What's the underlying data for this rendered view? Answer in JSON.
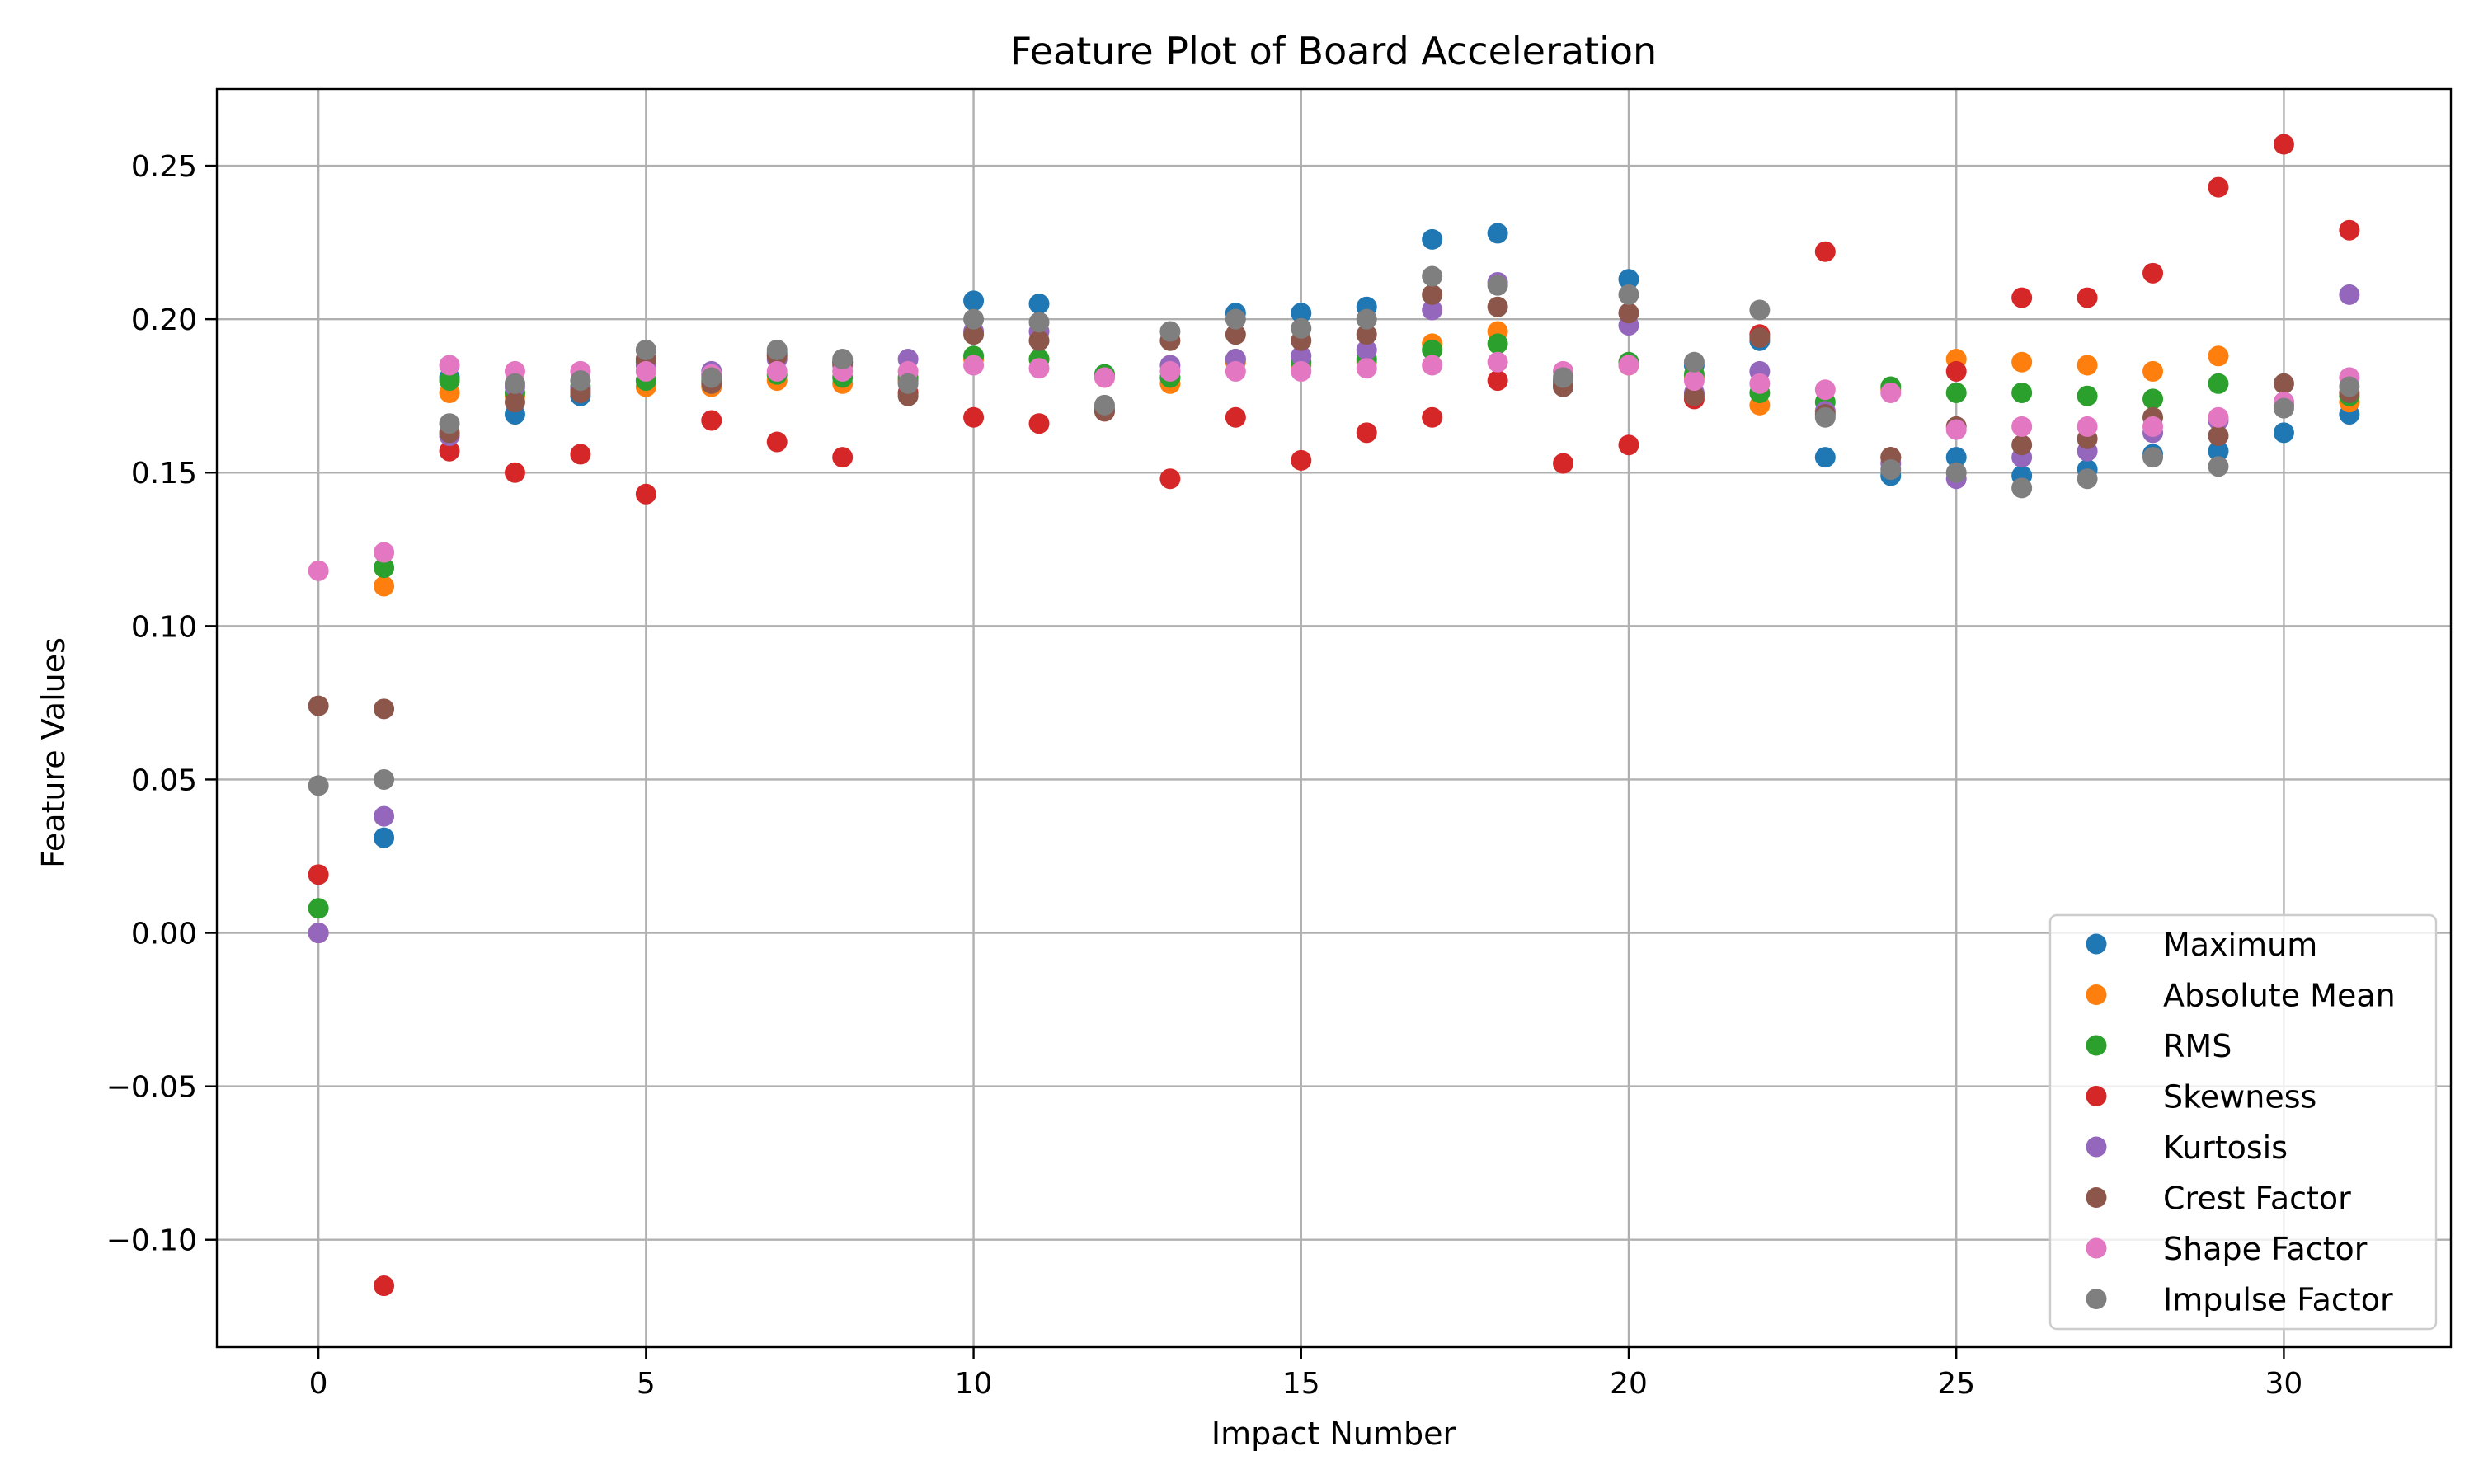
{
  "chart_data": {
    "type": "scatter",
    "title": "Feature Plot of Board Acceleration",
    "xlabel": "Impact Number",
    "ylabel": "Feature Values",
    "xlim": [
      -1.55,
      32.55
    ],
    "ylim": [
      -0.135,
      0.275
    ],
    "xticks": [
      0,
      5,
      10,
      15,
      20,
      25,
      30
    ],
    "xtick_labels": [
      "0",
      "5",
      "10",
      "15",
      "20",
      "25",
      "30"
    ],
    "yticks": [
      -0.1,
      -0.05,
      0.0,
      0.05,
      0.1,
      0.15,
      0.2,
      0.25
    ],
    "ytick_labels": [
      "−0.10",
      "−0.05",
      "0.00",
      "0.05",
      "0.10",
      "0.15",
      "0.20",
      "0.25"
    ],
    "grid": true,
    "legend_position": "lower-right",
    "x": [
      0,
      1,
      2,
      3,
      4,
      5,
      6,
      7,
      8,
      9,
      10,
      11,
      12,
      13,
      14,
      15,
      16,
      17,
      18,
      19,
      20,
      21,
      22,
      23,
      24,
      25,
      26,
      27,
      28,
      29,
      30,
      31
    ],
    "series": [
      {
        "name": "Maximum",
        "color": "#1f77b4",
        "values": [
          0.0,
          0.031,
          0.181,
          0.169,
          0.175,
          0.186,
          0.182,
          0.189,
          0.186,
          0.18,
          0.206,
          0.205,
          0.182,
          0.181,
          0.202,
          0.202,
          0.204,
          0.226,
          0.228,
          0.18,
          0.213,
          0.185,
          0.193,
          0.155,
          0.149,
          0.155,
          0.149,
          0.151,
          0.156,
          0.157,
          0.163,
          0.169
        ]
      },
      {
        "name": "Absolute Mean",
        "color": "#ff7f0e",
        "values": [
          0.0,
          0.113,
          0.176,
          0.175,
          0.177,
          0.178,
          0.178,
          0.18,
          0.179,
          0.18,
          0.187,
          0.187,
          0.181,
          0.179,
          0.186,
          0.185,
          0.186,
          0.192,
          0.196,
          0.178,
          0.185,
          0.181,
          0.172,
          0.17,
          0.177,
          0.187,
          0.186,
          0.185,
          0.183,
          0.188,
          0.172,
          0.173
        ]
      },
      {
        "name": "RMS",
        "color": "#2ca02c",
        "values": [
          0.008,
          0.119,
          0.18,
          0.176,
          0.178,
          0.18,
          0.18,
          0.182,
          0.181,
          0.181,
          0.188,
          0.187,
          0.182,
          0.181,
          0.187,
          0.186,
          0.187,
          0.19,
          0.192,
          0.179,
          0.186,
          0.182,
          0.176,
          0.173,
          0.178,
          0.176,
          0.176,
          0.175,
          0.174,
          0.179,
          0.172,
          0.175
        ]
      },
      {
        "name": "Skewness",
        "color": "#d62728",
        "values": [
          0.019,
          -0.115,
          0.157,
          0.15,
          0.156,
          0.143,
          0.167,
          0.16,
          0.155,
          0.176,
          0.168,
          0.166,
          0.17,
          0.148,
          0.168,
          0.154,
          0.163,
          0.168,
          0.18,
          0.153,
          0.159,
          0.174,
          0.195,
          0.222,
          0.155,
          0.183,
          0.207,
          0.207,
          0.215,
          0.243,
          0.257,
          0.229
        ]
      },
      {
        "name": "Kurtosis",
        "color": "#9467bd",
        "values": [
          0.0,
          0.038,
          0.162,
          0.178,
          0.177,
          0.185,
          0.183,
          0.187,
          0.185,
          0.187,
          0.196,
          0.196,
          0.171,
          0.185,
          0.187,
          0.188,
          0.19,
          0.203,
          0.212,
          0.178,
          0.198,
          0.176,
          0.183,
          0.17,
          0.153,
          0.148,
          0.155,
          0.157,
          0.163,
          0.167,
          0.173,
          0.208
        ]
      },
      {
        "name": "Crest Factor",
        "color": "#8c564b",
        "values": [
          0.074,
          0.073,
          0.163,
          0.173,
          0.176,
          0.187,
          0.179,
          0.188,
          0.186,
          0.175,
          0.195,
          0.193,
          0.17,
          0.193,
          0.195,
          0.193,
          0.195,
          0.208,
          0.204,
          0.178,
          0.202,
          0.175,
          0.194,
          0.169,
          0.155,
          0.165,
          0.159,
          0.161,
          0.168,
          0.162,
          0.179,
          0.176
        ]
      },
      {
        "name": "Shape Factor",
        "color": "#e377c2",
        "values": [
          0.118,
          0.124,
          0.185,
          0.183,
          0.183,
          0.183,
          0.182,
          0.183,
          0.183,
          0.183,
          0.185,
          0.184,
          0.181,
          0.183,
          0.183,
          0.183,
          0.184,
          0.185,
          0.186,
          0.183,
          0.185,
          0.18,
          0.179,
          0.177,
          0.176,
          0.164,
          0.165,
          0.165,
          0.165,
          0.168,
          0.173,
          0.181
        ]
      },
      {
        "name": "Impulse Factor",
        "color": "#7f7f7f",
        "values": [
          0.048,
          0.05,
          0.166,
          0.179,
          0.18,
          0.19,
          0.181,
          0.19,
          0.187,
          0.179,
          0.2,
          0.199,
          0.172,
          0.196,
          0.2,
          0.197,
          0.2,
          0.214,
          0.211,
          0.181,
          0.208,
          0.186,
          0.203,
          0.168,
          0.151,
          0.15,
          0.145,
          0.148,
          0.155,
          0.152,
          0.171,
          0.178
        ]
      }
    ]
  }
}
